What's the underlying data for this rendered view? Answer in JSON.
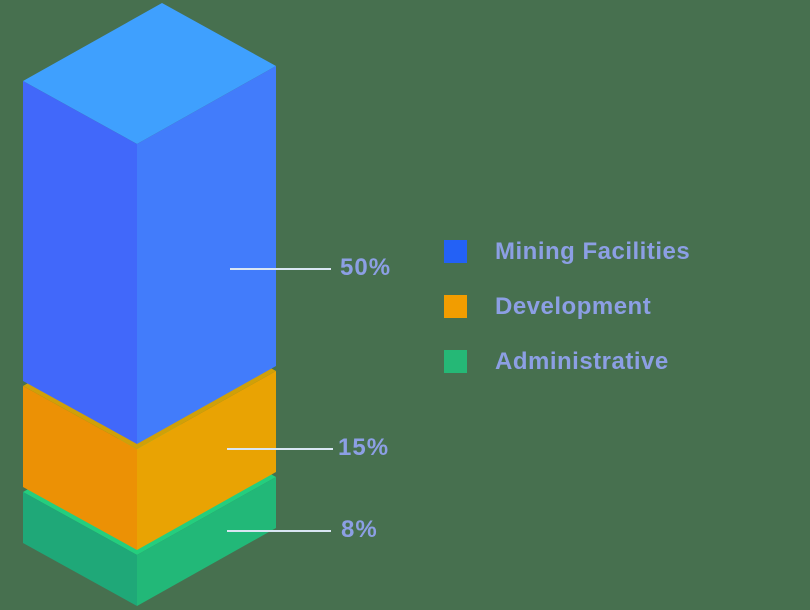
{
  "background_color": "#47704F",
  "chart_data": {
    "type": "bar",
    "variant": "isometric-3d-stacked-column",
    "title": "",
    "unit": "%",
    "legend_position": "right",
    "grid": false,
    "text_color": "#8C9FE4",
    "callout_line_color": "#D9E6F3",
    "categories": [
      "Mining Facilities",
      "Development",
      "Administrative"
    ],
    "values": [
      50,
      15,
      8
    ],
    "segments": [
      {
        "label": "Mining Facilities",
        "value": 50,
        "value_label": "50%",
        "colors": {
          "top": "#3FA0FE",
          "left": "#4168FA",
          "right": "#427CFB"
        }
      },
      {
        "label": "Development",
        "value": 15,
        "value_label": "15%",
        "colors": {
          "top": "#D0A008",
          "left": "#EC9105",
          "right": "#E9A303"
        }
      },
      {
        "label": "Administrative",
        "value": 8,
        "value_label": "8%",
        "colors": {
          "top": "#24CE7E",
          "left": "#1FA878",
          "right": "#22B878"
        }
      }
    ]
  },
  "legend": {
    "items": [
      {
        "label": "Mining Facilities",
        "color": "#2361F6"
      },
      {
        "label": "Development",
        "color": "#F29D00"
      },
      {
        "label": "Administrative",
        "color": "#25B876"
      }
    ]
  }
}
